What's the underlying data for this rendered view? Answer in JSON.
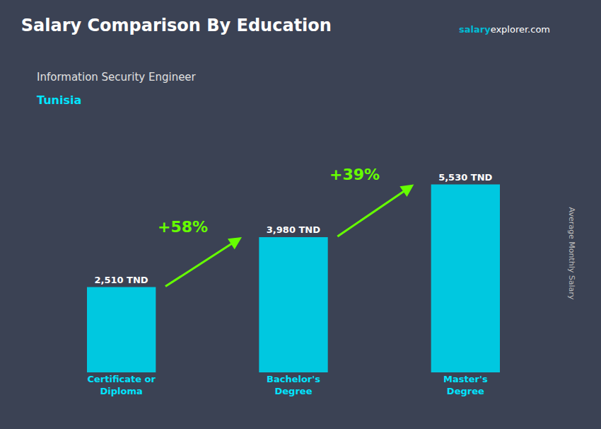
{
  "chart_data": {
    "type": "bar",
    "title": "Salary Comparison By Education",
    "subtitle": "Information Security Engineer",
    "country": {
      "text": "Tunisia",
      "color": "#00e5ff"
    },
    "source": [
      {
        "text": "salary",
        "color": "#00bcd4"
      },
      {
        "text": "explorer.com",
        "color": "#ffffff"
      }
    ],
    "categories": [
      "Certificate or\nDiploma",
      "Bachelor's\nDegree",
      "Master's\nDegree"
    ],
    "category_color": "#00e5ff",
    "values": [
      2510,
      3980,
      5530
    ],
    "value_labels": [
      "2,510 TND",
      "3,980 TND",
      "5,530 TND"
    ],
    "data_labels": true,
    "color": "#00c8e0",
    "change_labels": [
      {
        "text": "+58%",
        "color": "#66ff00"
      },
      {
        "text": "+39%",
        "color": "#66ff00"
      }
    ],
    "ylabel": "Average Monthly Salary",
    "ylim": [
      0,
      7000
    ],
    "tick_labels": "x",
    "grid": false
  }
}
